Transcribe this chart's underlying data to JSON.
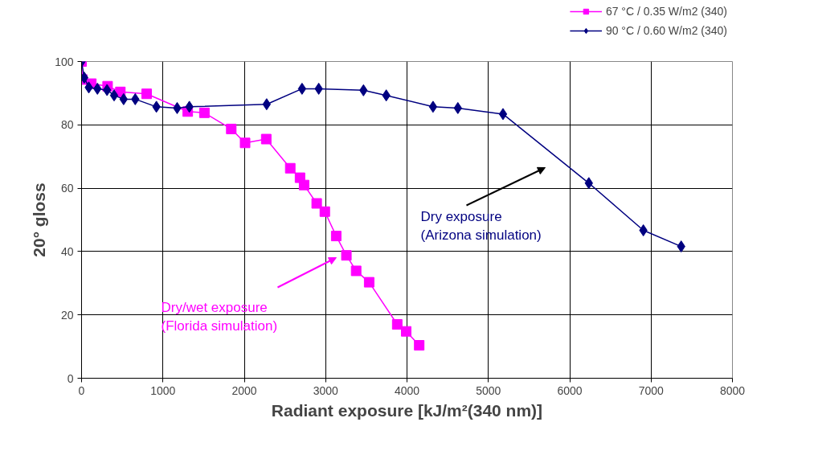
{
  "chart_data": {
    "type": "line",
    "xlabel": "Radiant exposure [kJ/m²(340 nm)]",
    "ylabel": "20° gloss",
    "xlim": [
      0,
      8000
    ],
    "xticks": [
      0,
      1000,
      2000,
      3000,
      4000,
      5000,
      6000,
      7000,
      8000
    ],
    "ylim": [
      0,
      100
    ],
    "yticks": [
      0,
      20,
      40,
      60,
      80,
      100
    ],
    "grid": true,
    "legend": "top right",
    "series": [
      {
        "name": "67 °C / 0.35 W/m2 (340)",
        "color": "#ff00ff",
        "marker": "square",
        "x": [
          0,
          10,
          120,
          320,
          477,
          800,
          1305,
          1510,
          1840,
          2010,
          2270,
          2565,
          2685,
          2735,
          2890,
          2990,
          3130,
          3255,
          3375,
          3535,
          3880,
          3990,
          4150
        ],
        "values": [
          100,
          94.3,
          93,
          92.2,
          90.4,
          89.8,
          84.2,
          83.8,
          78.7,
          74.3,
          75.5,
          66.3,
          63.3,
          61,
          55.2,
          52.6,
          44.9,
          38.8,
          33.9,
          30.3,
          17,
          14.8,
          10.4
        ]
      },
      {
        "name": "90 °C / 0.60 W/m2 (340)",
        "color": "#000080",
        "marker": "diamond",
        "x": [
          0,
          33,
          89,
          195,
          313,
          400,
          517,
          660,
          920,
          1175,
          1325,
          2275,
          2710,
          2915,
          3465,
          3745,
          4320,
          4625,
          5180,
          6235,
          6905,
          7370
        ],
        "values": [
          100,
          94.9,
          91.8,
          91.4,
          91,
          89.3,
          88.1,
          88.1,
          85.7,
          85.3,
          85.7,
          86.5,
          91.4,
          91.4,
          90.9,
          89.3,
          85.7,
          85.3,
          83.4,
          61.6,
          46.7,
          41.6
        ]
      }
    ],
    "annotations": [
      "Dry/wet exposure\n(Florida simulation)",
      "Dry exposure\n(Arizona simulation)"
    ]
  }
}
